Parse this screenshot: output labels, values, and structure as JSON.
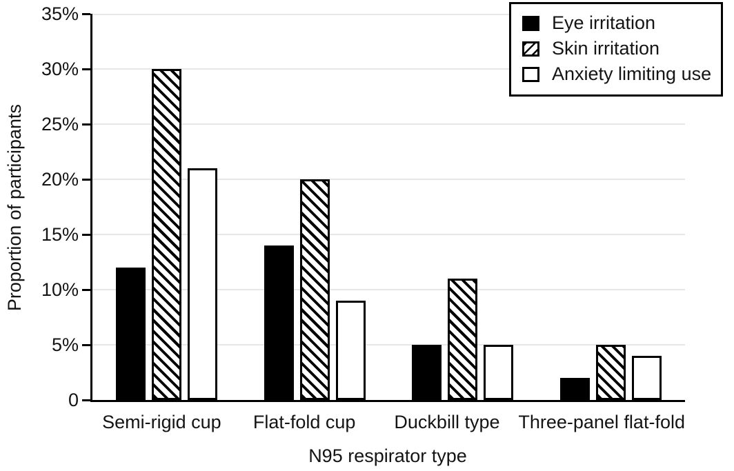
{
  "chart_data": {
    "type": "bar",
    "title": "",
    "xlabel": "N95 respirator type",
    "ylabel": "Proportion of participants",
    "categories": [
      "Semi-rigid cup",
      "Flat-fold cup",
      "Duckbill type",
      "Three-panel flat-fold"
    ],
    "series": [
      {
        "name": "Eye irritation",
        "pattern": "solid-black",
        "values": [
          12,
          14,
          5,
          2
        ]
      },
      {
        "name": "Skin irritation",
        "pattern": "diagonal-hatch",
        "values": [
          30,
          20,
          11,
          5
        ]
      },
      {
        "name": "Anxiety limiting use",
        "pattern": "white-open",
        "values": [
          21,
          9,
          5,
          4
        ]
      }
    ],
    "y_axis": {
      "tick_labels": [
        "0",
        "5%",
        "10%",
        "15%",
        "20%",
        "25%",
        "30%",
        "35%"
      ],
      "tick_values": [
        0,
        5,
        10,
        15,
        20,
        25,
        30,
        35
      ],
      "min": 0,
      "max": 35
    },
    "grid": "horizontal-light",
    "legend_position": "top-right"
  },
  "colors": {
    "foreground": "#000000",
    "background": "#ffffff",
    "gridline": "#e7e7e7"
  }
}
